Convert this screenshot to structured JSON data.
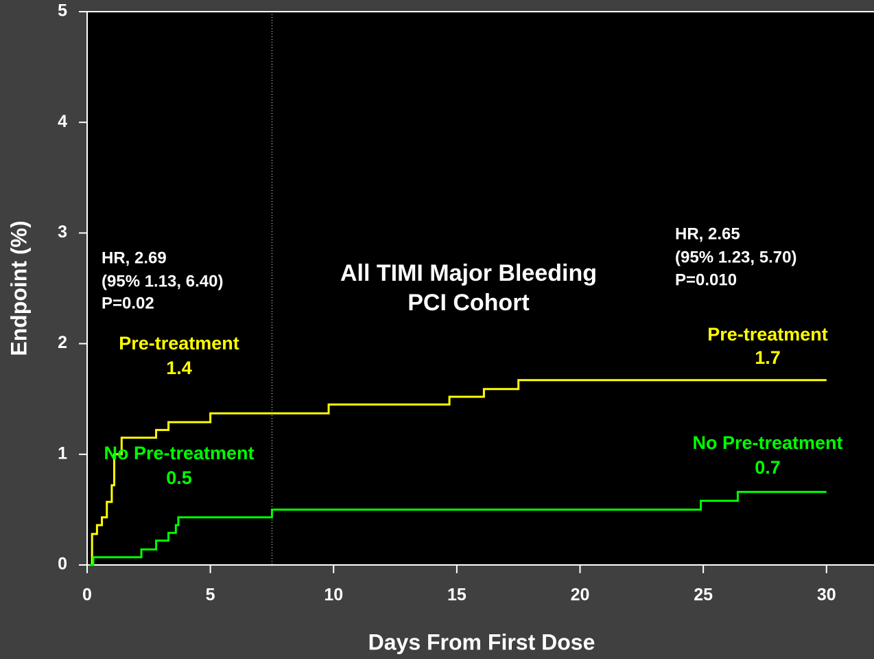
{
  "chart_data": {
    "type": "line",
    "title": [
      "All TIMI Major Bleeding",
      "PCI Cohort"
    ],
    "x_label": "Days From First Dose",
    "y_label": "Endpoint (%)",
    "xlim": [
      0,
      31.9
    ],
    "ylim": [
      0,
      5
    ],
    "xticks": [
      0,
      5,
      10,
      15,
      20,
      25,
      30
    ],
    "yticks": [
      0,
      1,
      2,
      3,
      4,
      5
    ],
    "vline": 7.5,
    "series": [
      {
        "name": "Pre-treatment",
        "color": "#ffff00",
        "x": [
          0.1,
          0.2,
          0.2,
          0.4,
          0.4,
          0.6,
          0.6,
          0.8,
          0.8,
          1.0,
          1.0,
          1.1,
          1.1,
          1.4,
          1.4,
          2.8,
          2.8,
          3.3,
          3.3,
          5.0,
          5.0,
          9.8,
          9.8,
          14.7,
          14.7,
          16.1,
          16.1,
          17.5,
          17.5,
          30
        ],
        "values": [
          0,
          0,
          0.28,
          0.28,
          0.36,
          0.36,
          0.43,
          0.43,
          0.57,
          0.57,
          0.72,
          0.72,
          1.0,
          1.0,
          1.15,
          1.15,
          1.22,
          1.22,
          1.29,
          1.29,
          1.37,
          1.37,
          1.45,
          1.45,
          1.52,
          1.52,
          1.59,
          1.59,
          1.67,
          1.67
        ]
      },
      {
        "name": "No Pre-treatment",
        "color": "#00ff00",
        "x": [
          0.1,
          0.25,
          0.25,
          2.2,
          2.2,
          2.8,
          2.8,
          3.3,
          3.3,
          3.6,
          3.6,
          3.7,
          3.7,
          7.5,
          7.5,
          24.9,
          24.9,
          26.4,
          26.4,
          30
        ],
        "values": [
          0,
          0,
          0.07,
          0.07,
          0.14,
          0.14,
          0.22,
          0.22,
          0.29,
          0.29,
          0.36,
          0.36,
          0.43,
          0.43,
          0.5,
          0.5,
          0.58,
          0.58,
          0.66,
          0.66
        ]
      }
    ],
    "annotations": [
      {
        "lines": [
          "HR, 2.69",
          "(95% 1.13, 6.40)",
          "P=0.02"
        ],
        "color": "#ffffff"
      },
      {
        "lines": [
          "HR, 2.65",
          "(95% 1.23, 5.70)",
          "P=0.010"
        ],
        "color": "#ffffff"
      },
      {
        "lines": [
          "Pre-treatment",
          "1.4"
        ],
        "color": "#ffff00"
      },
      {
        "lines": [
          "No Pre-treatment",
          "0.5"
        ],
        "color": "#00ff00"
      },
      {
        "lines": [
          "Pre-treatment",
          "1.7"
        ],
        "color": "#ffff00"
      },
      {
        "lines": [
          "No Pre-treatment",
          "0.7"
        ],
        "color": "#00ff00"
      }
    ]
  }
}
